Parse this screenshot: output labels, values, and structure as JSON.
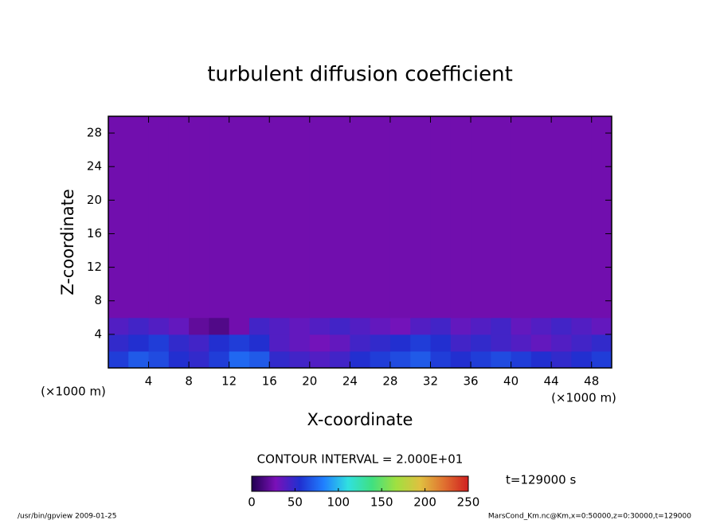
{
  "chart_data": {
    "type": "heatmap",
    "title": "turbulent diffusion coefficient",
    "xlabel": "X-coordinate",
    "ylabel": "Z-coordinate",
    "unit_label": "(×1000 m)",
    "xlim": [
      0,
      50
    ],
    "ylim": [
      0,
      30
    ],
    "xticks": [
      4,
      8,
      12,
      16,
      20,
      24,
      28,
      32,
      36,
      40,
      44,
      48
    ],
    "yticks": [
      4,
      8,
      12,
      16,
      20,
      24,
      28
    ],
    "xbins": [
      0,
      2,
      4,
      6,
      8,
      10,
      12,
      14,
      16,
      18,
      20,
      22,
      24,
      26,
      28,
      30,
      32,
      34,
      36,
      38,
      40,
      42,
      44,
      46,
      48,
      50
    ],
    "ybins": [
      0,
      2,
      4,
      6,
      30
    ],
    "values": [
      [
        60,
        70,
        65,
        55,
        50,
        60,
        75,
        70,
        50,
        45,
        40,
        45,
        55,
        60,
        65,
        70,
        60,
        55,
        60,
        65,
        60,
        55,
        50,
        55,
        60
      ],
      [
        50,
        55,
        60,
        50,
        45,
        55,
        60,
        55,
        40,
        35,
        30,
        35,
        45,
        50,
        55,
        60,
        55,
        45,
        50,
        45,
        40,
        35,
        40,
        45,
        50
      ],
      [
        40,
        45,
        40,
        35,
        20,
        15,
        25,
        45,
        40,
        35,
        40,
        45,
        40,
        35,
        30,
        40,
        45,
        35,
        40,
        45,
        35,
        40,
        45,
        40,
        35
      ],
      [
        25,
        25,
        25,
        25,
        25,
        25,
        25,
        25,
        25,
        25,
        25,
        25,
        25,
        25,
        25,
        25,
        25,
        25,
        25,
        25,
        25,
        25,
        25,
        25,
        25
      ]
    ],
    "colormap": [
      "#200050",
      "#7a10b8",
      "#2030d0",
      "#2080ff",
      "#30e0e0",
      "#40e080",
      "#a0e040",
      "#e0c040",
      "#e07030",
      "#d02020"
    ],
    "clim": [
      0,
      250
    ],
    "cticks": [
      0,
      50,
      100,
      150,
      200,
      250
    ],
    "contour_note": "CONTOUR INTERVAL = 2.000E+01",
    "time_note": "t=129000 s",
    "footer_left": "/usr/bin/gpview  2009-01-25",
    "footer_right": "MarsCond_Km.nc@Km,x=0:50000,z=0:30000,t=129000"
  }
}
